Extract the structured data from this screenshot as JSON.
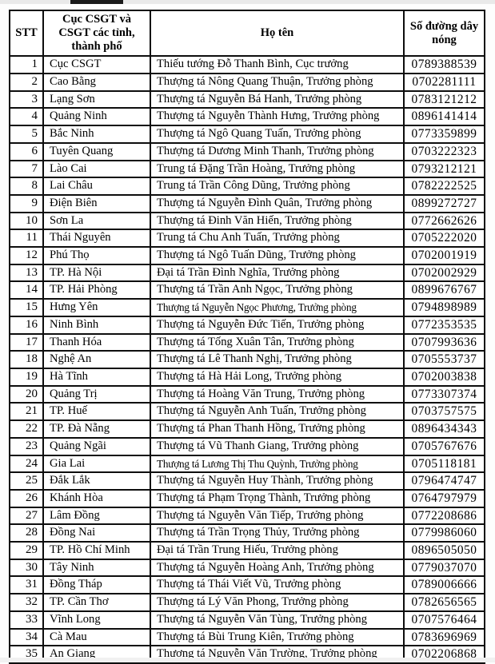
{
  "colors": {
    "border": "#0d0d0d",
    "text": "#000000",
    "background": "#ffffff",
    "artifact_gray": "#e9e9e9",
    "artifact_dark": "#1a1a1a"
  },
  "table": {
    "headers": [
      "STT",
      "Cục CSGT và CSGT các tỉnh, thành phố",
      "Họ tên",
      "Số đường dây nóng"
    ],
    "rows": [
      {
        "stt": "1",
        "unit": "Cục CSGT",
        "name": "Thiếu tướng Đỗ Thanh Bình, Cục trưởng",
        "hotline": "0789388539"
      },
      {
        "stt": "2",
        "unit": "Cao Bằng",
        "name": "Thượng tá Nông Quang Thuận, Trưởng phòng",
        "hotline": "0702281111"
      },
      {
        "stt": "3",
        "unit": "Lạng Sơn",
        "name": "Thượng tá Nguyễn Bá Hanh, Trưởng phòng",
        "hotline": "0783121212"
      },
      {
        "stt": "4",
        "unit": "Quảng Ninh",
        "name": "Thượng tá Nguyễn Thành Hưng, Trưởng phòng",
        "hotline": "0896141414"
      },
      {
        "stt": "5",
        "unit": "Bắc Ninh",
        "name": "Thượng tá Ngô Quang Tuấn, Trưởng phòng",
        "hotline": "0773359899"
      },
      {
        "stt": "6",
        "unit": "Tuyên Quang",
        "name": "Thượng tá Dương Minh Thanh, Trưởng phòng",
        "hotline": "0703222323"
      },
      {
        "stt": "7",
        "unit": "Lào Cai",
        "name": "Trung tá Đặng Trần Hoàng, Trưởng phòng",
        "hotline": "0793212121"
      },
      {
        "stt": "8",
        "unit": "Lai Châu",
        "name": "Trung tá Trần Công Dũng, Trưởng phòng",
        "hotline": "0782222525"
      },
      {
        "stt": "9",
        "unit": "Điện Biên",
        "name": "Thượng tá Nguyễn Đình Quân, Trưởng phòng",
        "hotline": "0899272727"
      },
      {
        "stt": "10",
        "unit": "Sơn La",
        "name": "Thượng tá Đinh Văn Hiến, Trưởng phòng",
        "hotline": "0772662626"
      },
      {
        "stt": "11",
        "unit": "Thái Nguyên",
        "name": "Trung tá Chu Anh Tuấn, Trưởng phòng",
        "hotline": "0705222020"
      },
      {
        "stt": "12",
        "unit": "Phú Thọ",
        "name": "Thượng tá Ngô Tuấn Dũng, Trưởng phòng",
        "hotline": "0702001919"
      },
      {
        "stt": "13",
        "unit": "TP. Hà Nội",
        "name": "Đại tá Trần Đình Nghĩa, Trưởng phòng",
        "hotline": "0702002929"
      },
      {
        "stt": "14",
        "unit": "TP. Hải Phòng",
        "name": "Thượng tá Trần Anh Ngọc, Trưởng phòng",
        "hotline": "0899676767"
      },
      {
        "stt": "15",
        "unit": "Hưng Yên",
        "name": "Thượng tá Nguyễn Ngọc Phương, Trưởng phòng",
        "hotline": "0794898989"
      },
      {
        "stt": "16",
        "unit": "Ninh Bình",
        "name": "Thượng tá Nguyễn Đức Tiến, Trưởng phòng",
        "hotline": "0772353535"
      },
      {
        "stt": "17",
        "unit": "Thanh Hóa",
        "name": "Thượng tá Tống Xuân Tân, Trưởng phòng",
        "hotline": "0707993636"
      },
      {
        "stt": "18",
        "unit": "Nghệ An",
        "name": "Thượng tá Lê Thanh Nghị, Trưởng phòng",
        "hotline": "0705553737"
      },
      {
        "stt": "19",
        "unit": "Hà Tĩnh",
        "name": "Thượng tá Hà Hải Long, Trưởng phòng",
        "hotline": "0702003838"
      },
      {
        "stt": "20",
        "unit": "Quảng Trị",
        "name": "Thượng tá Hoàng Văn Trung, Trưởng phòng",
        "hotline": "0773307374"
      },
      {
        "stt": "21",
        "unit": "TP. Huế",
        "name": "Thượng tá Nguyễn Anh Tuấn, Trưởng phòng",
        "hotline": "0703757575"
      },
      {
        "stt": "22",
        "unit": "TP. Đà Nẵng",
        "name": "Thượng tá Phan Thanh Hồng, Trưởng phòng",
        "hotline": "0896434343"
      },
      {
        "stt": "23",
        "unit": "Quảng Ngãi",
        "name": "Thượng tá Vũ Thanh Giang, Trưởng phòng",
        "hotline": "0705767676"
      },
      {
        "stt": "24",
        "unit": "Gia Lai",
        "name": "Thượng tá Lương Thị Thu Quỳnh, Trưởng phòng",
        "hotline": "0705118181"
      },
      {
        "stt": "25",
        "unit": "Đắk Lắk",
        "name": "Thượng tá Nguyễn Huy Thành, Trưởng phòng",
        "hotline": "0796474747"
      },
      {
        "stt": "26",
        "unit": "Khánh Hòa",
        "name": "Thượng tá Phạm Trọng Thành, Trưởng phòng",
        "hotline": "0764797979"
      },
      {
        "stt": "27",
        "unit": "Lâm Đồng",
        "name": "Thượng tá Nguyễn Văn Tiếp, Trưởng phòng",
        "hotline": "0772208686"
      },
      {
        "stt": "28",
        "unit": "Đồng Nai",
        "name": "Thượng tá Trần Trọng Thủy, Trưởng phòng",
        "hotline": "0779986060"
      },
      {
        "stt": "29",
        "unit": "TP. Hồ Chí Minh",
        "name": "Đại tá Trần Trung Hiếu, Trưởng phòng",
        "hotline": "0896505050"
      },
      {
        "stt": "30",
        "unit": "Tây Ninh",
        "name": "Thượng tá Nguyễn Hoàng Anh, Trưởng phòng",
        "hotline": "0779037070"
      },
      {
        "stt": "31",
        "unit": "Đồng Tháp",
        "name": "Thượng tá Thái Viết Vũ, Trưởng phòng",
        "hotline": "0789006666"
      },
      {
        "stt": "32",
        "unit": "TP. Cần Thơ",
        "name": "Thượng tá Lý Văn Phong, Trưởng phòng",
        "hotline": "0782656565"
      },
      {
        "stt": "33",
        "unit": "Vĩnh Long",
        "name": "Thượng tá Nguyễn Văn Tùng, Trưởng phòng",
        "hotline": "0707576464"
      },
      {
        "stt": "34",
        "unit": "Cà Mau",
        "name": "Thượng tá Bùi Trung Kiên, Trưởng phòng",
        "hotline": "0783696969"
      },
      {
        "stt": "35",
        "unit": "An Giang",
        "name": "Thượng tá Nguyễn Văn Trường, Trưởng phòng",
        "hotline": "0702206868"
      }
    ]
  }
}
